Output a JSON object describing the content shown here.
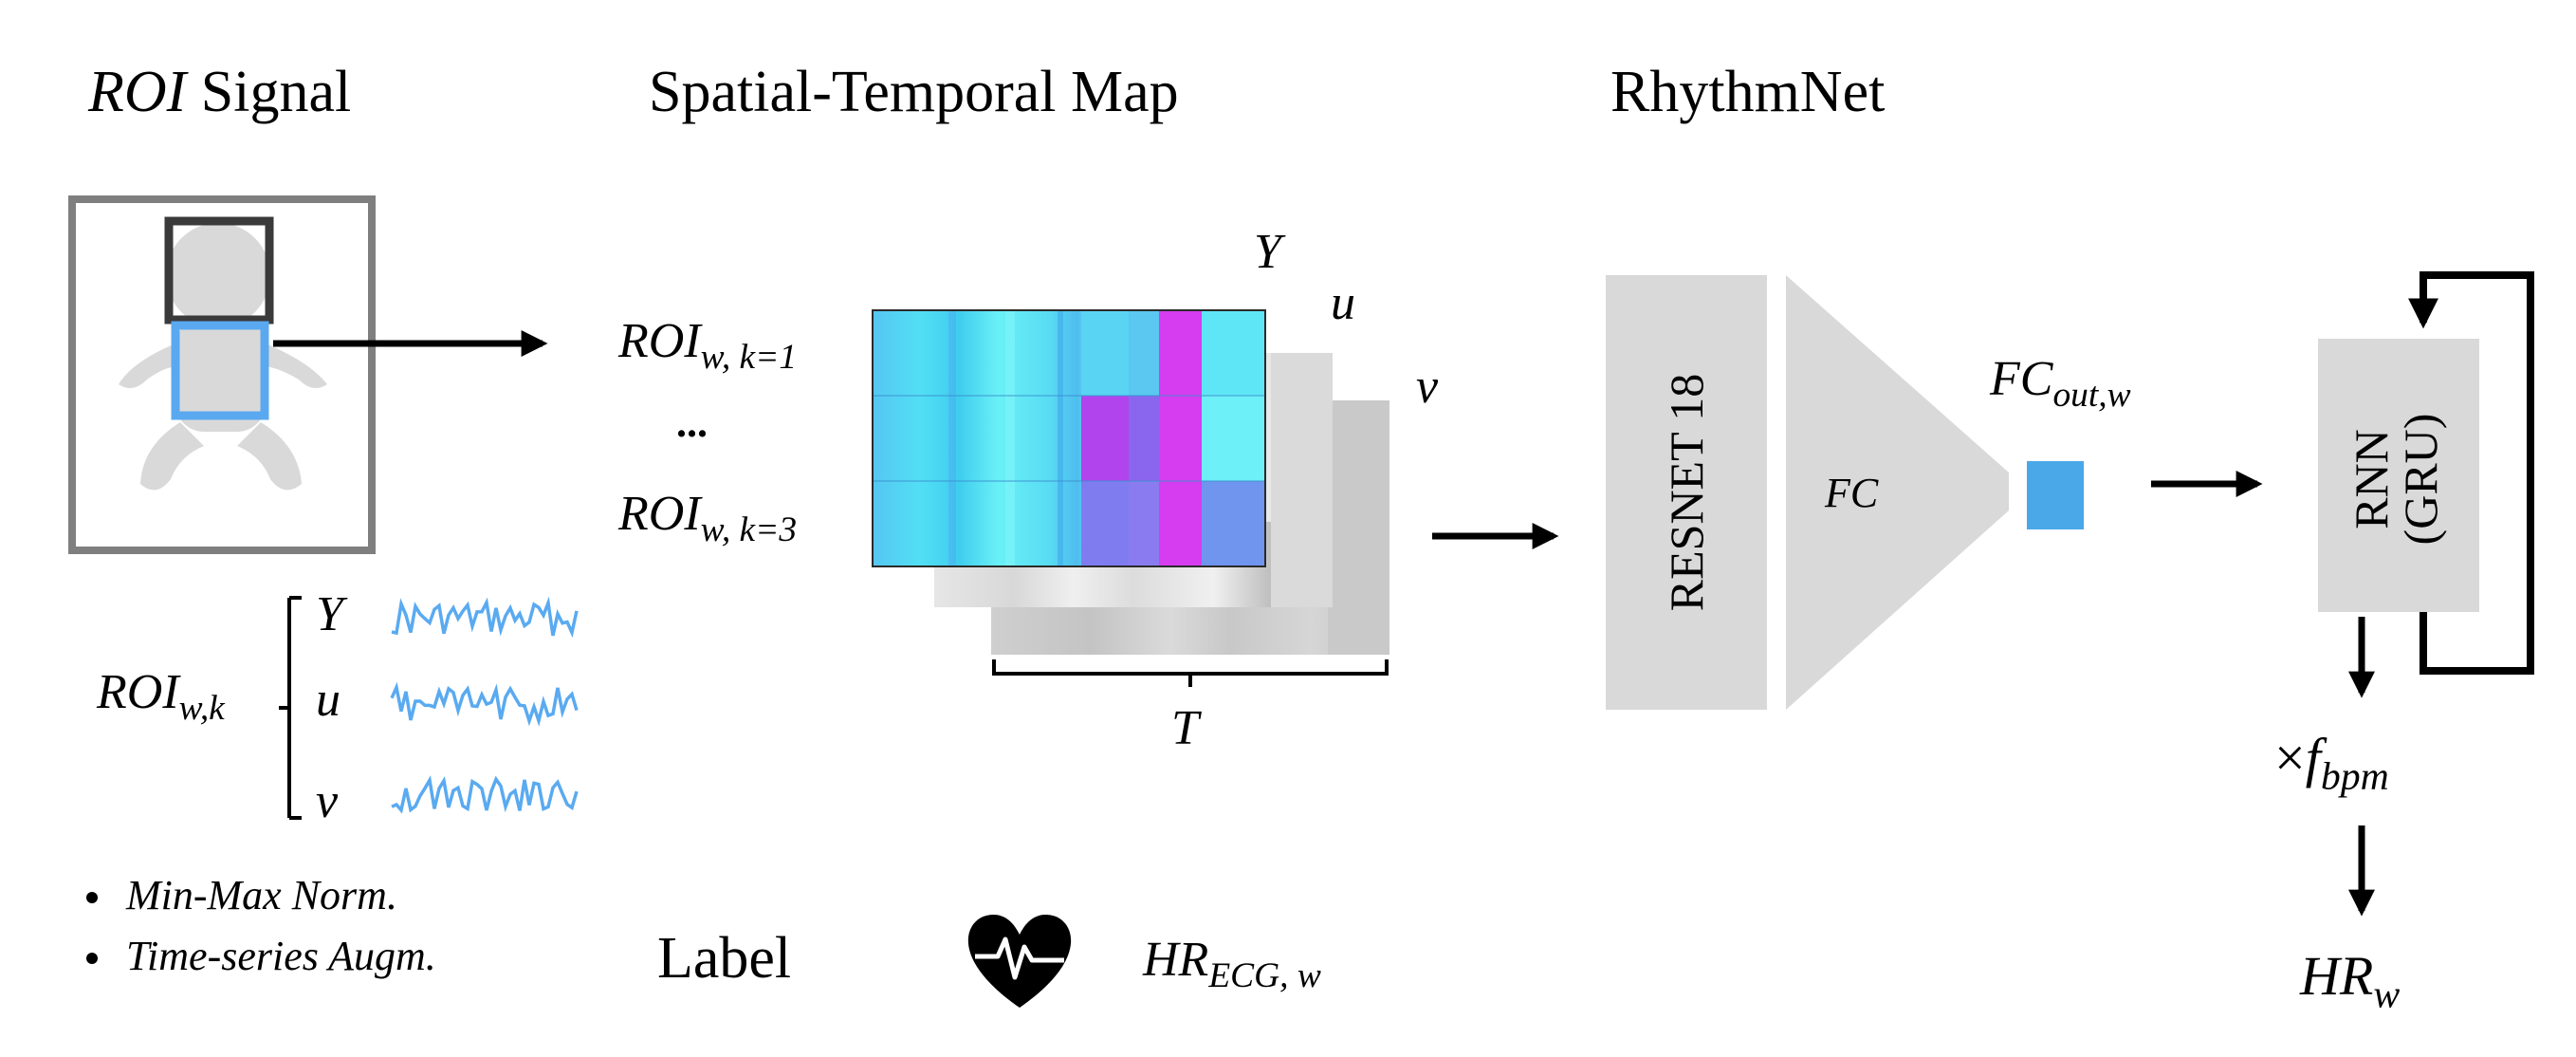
{
  "sections": {
    "roi_title_italic": "ROI",
    "roi_title_rest": " Signal",
    "stmap_title": "Spatial-Temporal Map",
    "rhythmnet_title": "RhythmNet"
  },
  "stmap": {
    "row1_base": "ROI",
    "row1_sub": "w, k=1",
    "dots": "...",
    "row3_base": "ROI",
    "row3_sub": "w, k=3",
    "channel_y": "Y",
    "channel_u": "u",
    "channel_v": "v",
    "axis_t": "T"
  },
  "signals": {
    "group_base": "ROI",
    "group_sub": "w,k",
    "y": "Y",
    "u": "u",
    "v": "v",
    "color": "#5aaaf0"
  },
  "bullets": [
    "Min-Max Norm.",
    "Time-series Augm."
  ],
  "label": {
    "text": "Label",
    "hr_base": "HR",
    "hr_sub": "ECG, w"
  },
  "network": {
    "resnet": "RESNET 18",
    "fc": "FC",
    "fcout_base": "FC",
    "fcout_sub": "out,w",
    "rnn_line1": "RNN",
    "rnn_line2": "(GRU)",
    "fbpm_prefix": "×",
    "fbpm_base": "f",
    "fbpm_sub": "bpm",
    "hr_base": "HR",
    "hr_sub": "w"
  },
  "colors": {
    "block_gray": "#d9d9d9",
    "roi_blue": "#5aa9f0",
    "fc_out_blue": "#4aa8e8",
    "heatmap_cyan": "#5ee8f5",
    "heatmap_magenta": "#d63cf0"
  }
}
